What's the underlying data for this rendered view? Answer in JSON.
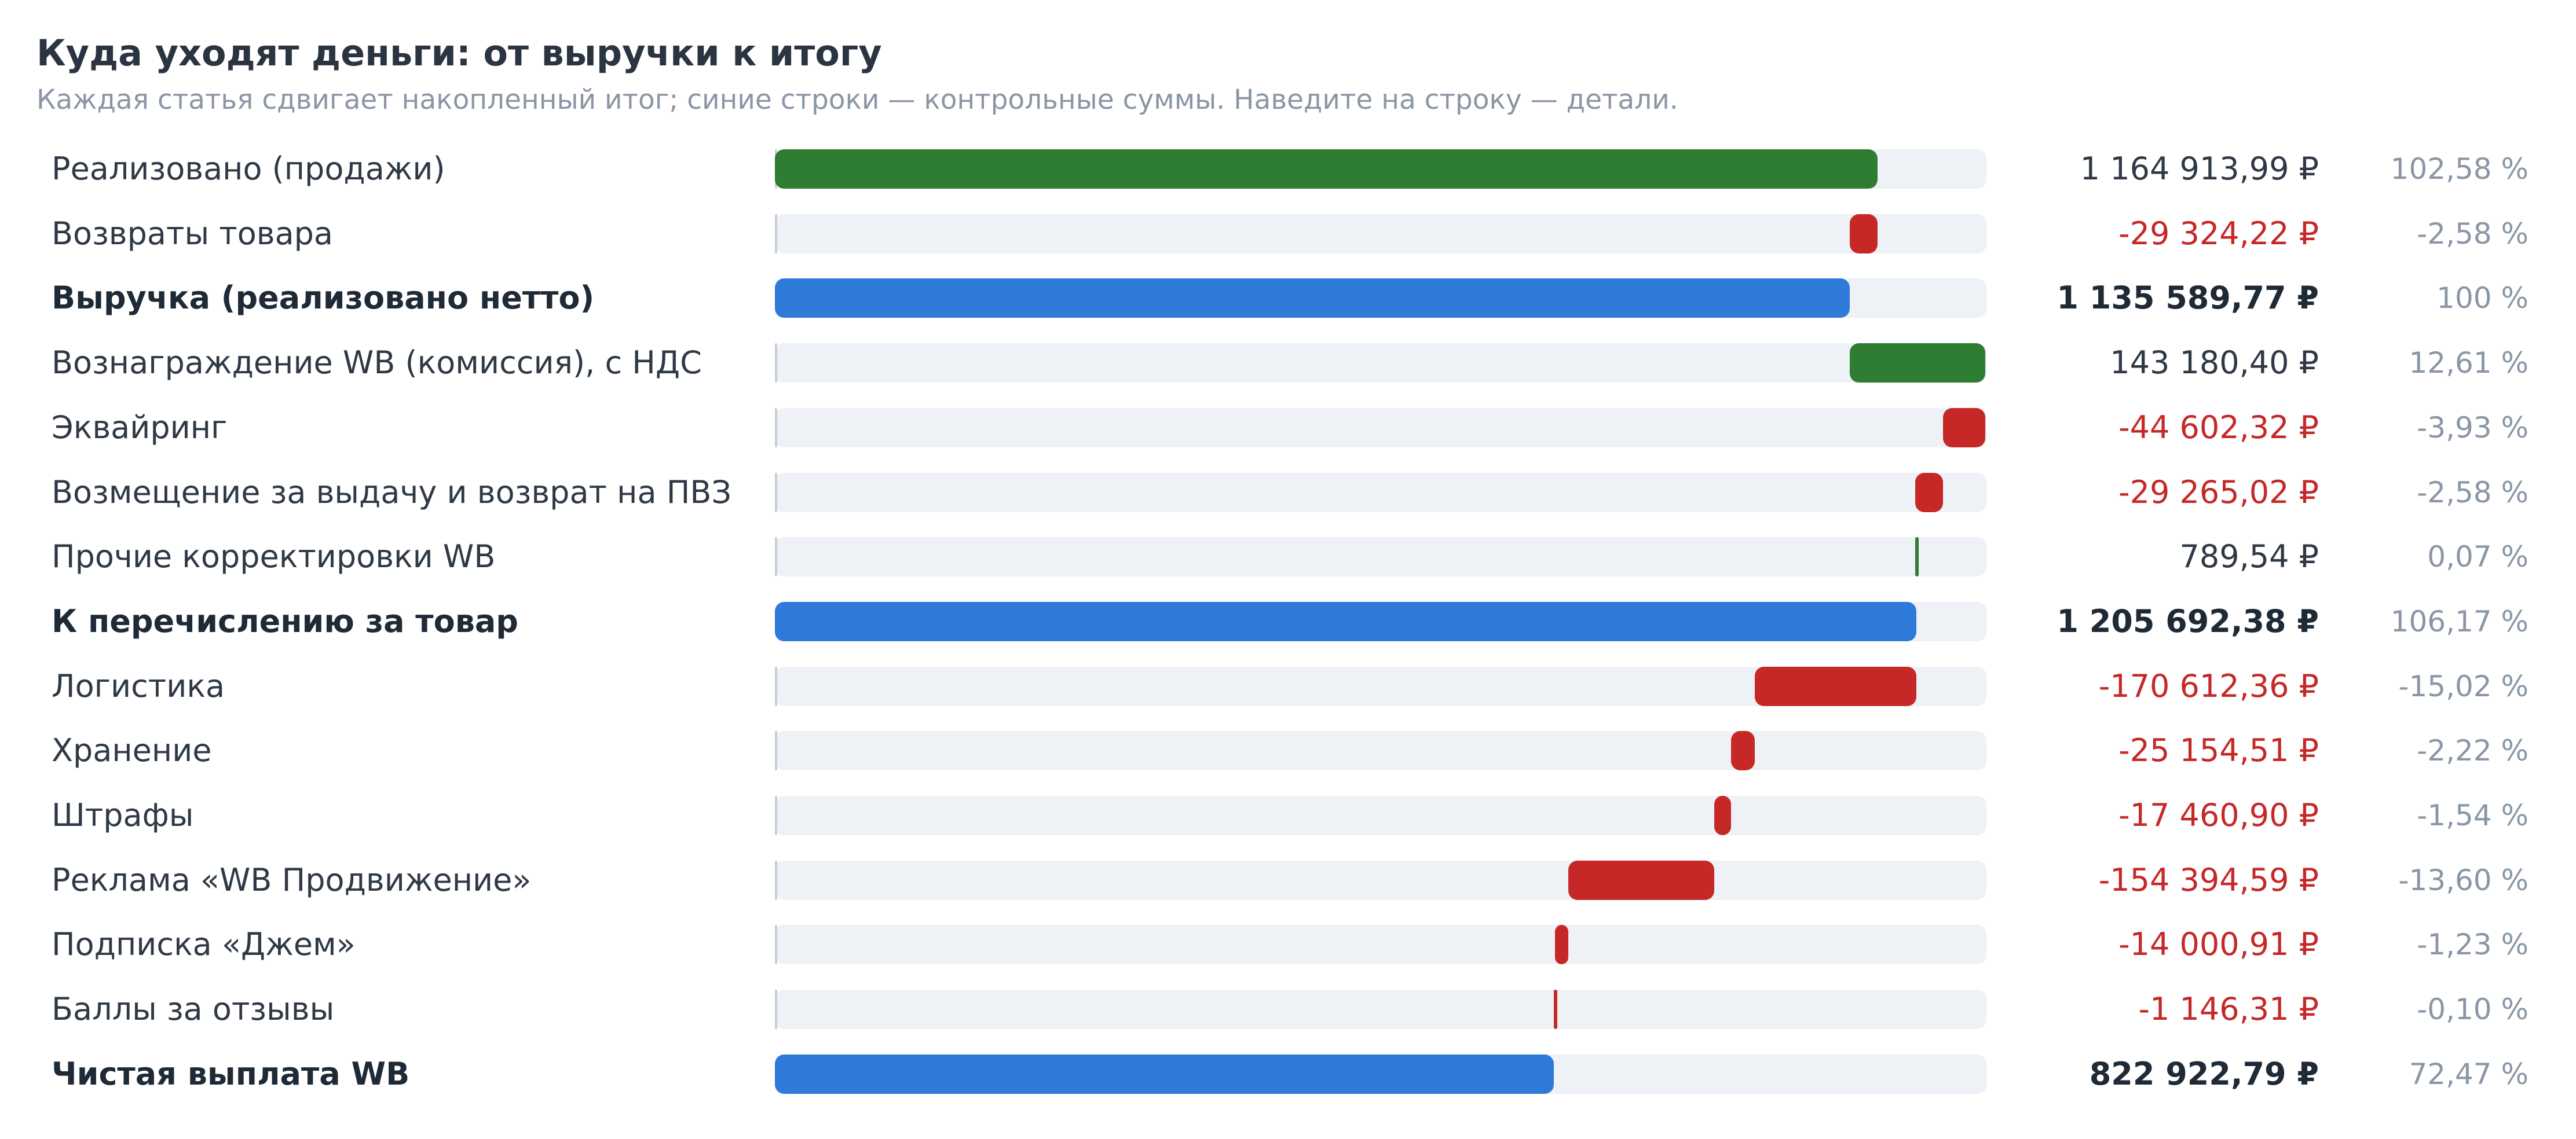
{
  "title": "Куда уходят деньги: от выручки к итогу",
  "subtitle": "Каждая статья сдвигает накопленный итог; синие строки — контрольные суммы. Наведите на строку — детали.",
  "colors": {
    "increase": "#2e7d32",
    "decrease": "#c62828",
    "total": "#2f7ad8",
    "track": "#eef1f5",
    "text": "#2f3946",
    "muted": "#8a96a6"
  },
  "chart_data": {
    "type": "bar",
    "subtype": "waterfall",
    "currency": "₽",
    "rows": [
      {
        "label": "Реализовано (продажи)",
        "kind": "increase",
        "value": 1164913.99,
        "value_text": "1 164 913,99 ₽",
        "percent_text": "102,58 %"
      },
      {
        "label": "Возвраты товара",
        "kind": "decrease",
        "value": -29324.22,
        "value_text": "-29 324,22 ₽",
        "percent_text": "-2,58 %"
      },
      {
        "label": "Выручка (реализовано нетто)",
        "kind": "total",
        "value": 1135589.77,
        "value_text": "1 135 589,77 ₽",
        "percent_text": "100 %"
      },
      {
        "label": "Вознаграждение WB (комиссия), с НДС",
        "kind": "increase",
        "value": 143180.4,
        "value_text": "143 180,40 ₽",
        "percent_text": "12,61 %"
      },
      {
        "label": "Эквайринг",
        "kind": "decrease",
        "value": -44602.32,
        "value_text": "-44 602,32 ₽",
        "percent_text": "-3,93 %"
      },
      {
        "label": "Возмещение за выдачу и возврат на ПВЗ",
        "kind": "decrease",
        "value": -29265.02,
        "value_text": "-29 265,02 ₽",
        "percent_text": "-2,58 %"
      },
      {
        "label": "Прочие корректировки WB",
        "kind": "increase",
        "value": 789.54,
        "value_text": "789,54 ₽",
        "percent_text": "0,07 %"
      },
      {
        "label": "К перечислению за товар",
        "kind": "total",
        "value": 1205692.38,
        "value_text": "1 205 692,38 ₽",
        "percent_text": "106,17 %"
      },
      {
        "label": "Логистика",
        "kind": "decrease",
        "value": -170612.36,
        "value_text": "-170 612,36 ₽",
        "percent_text": "-15,02 %"
      },
      {
        "label": "Хранение",
        "kind": "decrease",
        "value": -25154.51,
        "value_text": "-25 154,51 ₽",
        "percent_text": "-2,22 %"
      },
      {
        "label": "Штрафы",
        "kind": "decrease",
        "value": -17460.9,
        "value_text": "-17 460,90 ₽",
        "percent_text": "-1,54 %"
      },
      {
        "label": "Реклама «WB Продвижение»",
        "kind": "decrease",
        "value": -154394.59,
        "value_text": "-154 394,59 ₽",
        "percent_text": "-13,60 %"
      },
      {
        "label": "Подписка «Джем»",
        "kind": "decrease",
        "value": -14000.91,
        "value_text": "-14 000,91 ₽",
        "percent_text": "-1,23 %"
      },
      {
        "label": "Баллы за отзывы",
        "kind": "decrease",
        "value": -1146.31,
        "value_text": "-1 146,31 ₽",
        "percent_text": "-0,10 %"
      },
      {
        "label": "Чистая выплата WB",
        "kind": "total",
        "value": 822922.79,
        "value_text": "822 922,79 ₽",
        "percent_text": "72,47 %"
      }
    ],
    "x_range": [
      0,
      1280000
    ],
    "grid": false,
    "legend": "none"
  }
}
